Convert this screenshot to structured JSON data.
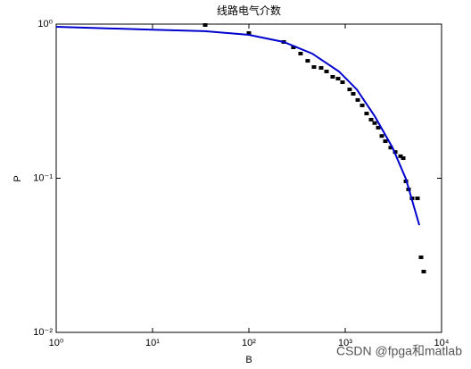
{
  "chart_data": {
    "type": "scatter",
    "title": "线路电气介数",
    "xlabel": "B",
    "ylabel": "P",
    "xscale": "log",
    "yscale": "log",
    "xlim": [
      1,
      10000
    ],
    "ylim": [
      0.01,
      1
    ],
    "xticks": [
      {
        "value": 1,
        "label": "10⁰"
      },
      {
        "value": 10,
        "label": "10¹"
      },
      {
        "value": 100,
        "label": "10²"
      },
      {
        "value": 1000,
        "label": "10³"
      },
      {
        "value": 10000,
        "label": "10⁴"
      }
    ],
    "yticks": [
      {
        "value": 0.01,
        "label": "10⁻²"
      },
      {
        "value": 0.1,
        "label": "10⁻¹"
      },
      {
        "value": 1,
        "label": "10⁰"
      }
    ],
    "series": [
      {
        "kind": "scatter",
        "color": "#000000",
        "x": [
          35.2,
          100,
          230,
          290,
          344,
          408,
          474,
          562,
          640,
          741,
          843,
          938,
          1112,
          1211,
          1349,
          1500,
          1667,
          1857,
          2022,
          2202,
          2398,
          2610,
          2965,
          3302,
          3750,
          4000,
          4266,
          4542,
          4943,
          5623,
          6124,
          6531
        ],
        "values": [
          0.987,
          0.875,
          0.766,
          0.707,
          0.644,
          0.578,
          0.527,
          0.52,
          0.493,
          0.455,
          0.443,
          0.42,
          0.377,
          0.353,
          0.322,
          0.297,
          0.263,
          0.24,
          0.228,
          0.213,
          0.188,
          0.174,
          0.158,
          0.148,
          0.139,
          0.135,
          0.0955,
          0.0847,
          0.0741,
          0.0741,
          0.0307,
          0.0248
        ]
      },
      {
        "kind": "line",
        "color": "#0000cc",
        "x": [
          1,
          10,
          35,
          100,
          230,
          454,
          861,
          1318,
          2022,
          3097,
          4266,
          5875
        ],
        "values": [
          0.961,
          0.92,
          0.9,
          0.852,
          0.766,
          0.644,
          0.493,
          0.377,
          0.253,
          0.158,
          0.099,
          0.0496
        ]
      }
    ]
  },
  "watermark": "CSDN @fpga和matlab"
}
